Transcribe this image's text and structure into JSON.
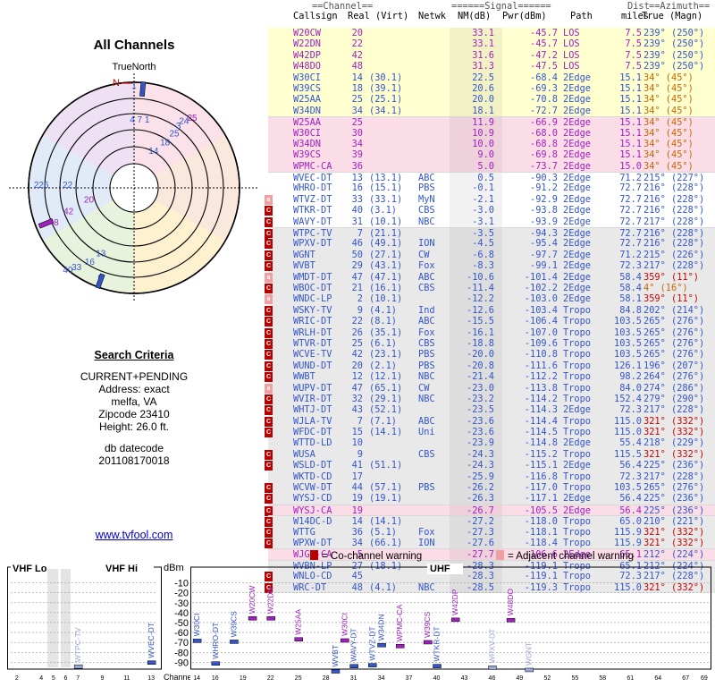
{
  "radar": {
    "title": "All Channels",
    "north_label": "TrueNorth",
    "n_marker": "N",
    "stations": [
      {
        "label": "1",
        "az": 0,
        "r": 0.94,
        "color": "#3355cc"
      },
      {
        "label": "2",
        "az": 5,
        "r": 0.94,
        "color": "#3355cc"
      },
      {
        "label": "4 7 1",
        "az": 5,
        "r": 0.62,
        "color": "#3355cc"
      },
      {
        "label": "25",
        "az": 41,
        "r": 0.84,
        "color": "#a020c0"
      },
      {
        "label": "24",
        "az": 38,
        "r": 0.77,
        "color": "#3355cc"
      },
      {
        "label": "3",
        "az": 37,
        "r": 0.7,
        "color": "#3355cc"
      },
      {
        "label": "25",
        "az": 38,
        "r": 0.62,
        "color": "#3355cc"
      },
      {
        "label": "18",
        "az": 36,
        "r": 0.5,
        "color": "#3355cc"
      },
      {
        "label": "14",
        "az": 30,
        "r": 0.37,
        "color": "#3355cc"
      },
      {
        "label": "22",
        "az": 270,
        "r": 0.63,
        "color": "#3355cc"
      },
      {
        "label": "226",
        "az": 270,
        "r": 0.88,
        "color": "#3355cc"
      },
      {
        "label": "20",
        "az": 252,
        "r": 0.45,
        "color": "#a020c0"
      },
      {
        "label": "42",
        "az": 248,
        "r": 0.67,
        "color": "#a020c0"
      },
      {
        "label": "48",
        "az": 245,
        "r": 0.84,
        "color": "#a020c0"
      },
      {
        "label": "13",
        "az": 206,
        "r": 0.72,
        "color": "#3355cc"
      },
      {
        "label": "16",
        "az": 210,
        "r": 0.84,
        "color": "#3355cc"
      },
      {
        "label": "9",
        "az": 200,
        "r": 0.94,
        "color": "#3355cc"
      },
      {
        "label": "33",
        "az": 215,
        "r": 0.95,
        "color": "#3355cc"
      },
      {
        "label": "40",
        "az": 218,
        "r": 1.02,
        "color": "#3355cc"
      }
    ]
  },
  "criteria": {
    "heading": "Search Criteria",
    "mode": "CURRENT+PENDING",
    "address": "Address: exact",
    "location": "melfa, VA",
    "zipcode": "Zipcode 23410",
    "height": "Height: 26.0 ft.",
    "datecode_label": "db datecode",
    "datecode": "201108170018"
  },
  "site_link": "www.tvfool.com",
  "table_header": {
    "group_channel": "==Channel==",
    "group_signal": "======Signal======",
    "group_dist": "Dist",
    "group_azimuth": "==Azimuth==",
    "col_callsign": "Callsign",
    "col_real_virt": "Real (Virt)",
    "col_netwk": "Netwk",
    "col_nm": "NM(dB)",
    "col_pwr": "Pwr(dBm)",
    "col_path": "Path",
    "col_miles": "miles",
    "col_true_magn": "True (Magn)"
  },
  "rows": [
    {
      "call": "W20CW",
      "real": "20",
      "virt": "",
      "net": "",
      "nm": "33.1",
      "pwr": "-45.7",
      "path": "LOS",
      "dist": "7.5",
      "az": "239° (250°)",
      "band": "yel",
      "fg": "pur",
      "warn": ""
    },
    {
      "call": "W22DN",
      "real": "22",
      "virt": "",
      "net": "",
      "nm": "33.1",
      "pwr": "-45.7",
      "path": "LOS",
      "dist": "7.5",
      "az": "239° (250°)",
      "band": "yel",
      "fg": "pur",
      "warn": ""
    },
    {
      "call": "W42DP",
      "real": "42",
      "virt": "",
      "net": "",
      "nm": "31.6",
      "pwr": "-47.2",
      "path": "LOS",
      "dist": "7.5",
      "az": "239° (250°)",
      "band": "yel",
      "fg": "pur",
      "warn": ""
    },
    {
      "call": "W48DO",
      "real": "48",
      "virt": "",
      "net": "",
      "nm": "31.3",
      "pwr": "-47.5",
      "path": "LOS",
      "dist": "7.5",
      "az": "239° (250°)",
      "band": "yel",
      "fg": "pur",
      "warn": ""
    },
    {
      "call": "W30CI",
      "real": "14",
      "virt": "(30.1)",
      "net": "",
      "nm": "22.5",
      "pwr": "-68.4",
      "path": "2Edge",
      "dist": "15.1",
      "az": "34° (45°)",
      "band": "yel",
      "fg": "blue",
      "warn": ""
    },
    {
      "call": "W39CS",
      "real": "18",
      "virt": "(39.1)",
      "net": "",
      "nm": "20.6",
      "pwr": "-69.3",
      "path": "2Edge",
      "dist": "15.1",
      "az": "34° (45°)",
      "band": "yel",
      "fg": "blue",
      "warn": ""
    },
    {
      "call": "W25AA",
      "real": "25",
      "virt": "(25.1)",
      "net": "",
      "nm": "20.0",
      "pwr": "-70.8",
      "path": "2Edge",
      "dist": "15.1",
      "az": "34° (45°)",
      "band": "yel",
      "fg": "blue",
      "warn": ""
    },
    {
      "call": "W34DN",
      "real": "34",
      "virt": "(34.1)",
      "net": "",
      "nm": "18.1",
      "pwr": "-72.7",
      "path": "2Edge",
      "dist": "15.1",
      "az": "34° (45°)",
      "band": "yel",
      "fg": "blue",
      "warn": ""
    },
    {
      "call": "W25AA",
      "real": "25",
      "virt": "",
      "net": "",
      "nm": "11.9",
      "pwr": "-66.9",
      "path": "2Edge",
      "dist": "15.1",
      "az": "34° (45°)",
      "band": "pur",
      "fg": "pur",
      "warn": ""
    },
    {
      "call": "W30CI",
      "real": "30",
      "virt": "",
      "net": "",
      "nm": "10.9",
      "pwr": "-68.0",
      "path": "2Edge",
      "dist": "15.1",
      "az": "34° (45°)",
      "band": "pur",
      "fg": "pur",
      "warn": ""
    },
    {
      "call": "W34DN",
      "real": "34",
      "virt": "",
      "net": "",
      "nm": "10.0",
      "pwr": "-68.8",
      "path": "2Edge",
      "dist": "15.1",
      "az": "34° (45°)",
      "band": "pur",
      "fg": "pur",
      "warn": ""
    },
    {
      "call": "W39CS",
      "real": "39",
      "virt": "",
      "net": "",
      "nm": "9.0",
      "pwr": "-69.8",
      "path": "2Edge",
      "dist": "15.1",
      "az": "34° (45°)",
      "band": "pur",
      "fg": "pur",
      "warn": ""
    },
    {
      "call": "WPMC-CA",
      "real": "36",
      "virt": "",
      "net": "",
      "nm": "5.0",
      "pwr": "-73.7",
      "path": "2Edge",
      "dist": "15.0",
      "az": "34° (45°)",
      "band": "pur",
      "fg": "pur",
      "warn": ""
    },
    {
      "call": "WVEC-DT",
      "real": "13",
      "virt": "(13.1)",
      "net": "ABC",
      "nm": "0.5",
      "pwr": "-90.3",
      "path": "2Edge",
      "dist": "71.2",
      "az": "215° (227°)",
      "band": "wht",
      "fg": "blue",
      "warn": ""
    },
    {
      "call": "WHRO-DT",
      "real": "16",
      "virt": "(15.1)",
      "net": "PBS",
      "nm": "-0.1",
      "pwr": "-91.2",
      "path": "2Edge",
      "dist": "72.7",
      "az": "216° (228°)",
      "band": "wht",
      "fg": "blue",
      "warn": ""
    },
    {
      "call": "WTVZ-DT",
      "real": "33",
      "virt": "(33.1)",
      "net": "MyN",
      "nm": "-2.1",
      "pwr": "-92.9",
      "path": "2Edge",
      "dist": "72.7",
      "az": "216° (228°)",
      "band": "wht",
      "fg": "blue",
      "warn": "adj"
    },
    {
      "call": "WTKR-DT",
      "real": "40",
      "virt": "(3.1)",
      "net": "CBS",
      "nm": "-3.0",
      "pwr": "-93.8",
      "path": "2Edge",
      "dist": "72.7",
      "az": "216° (228°)",
      "band": "wht",
      "fg": "blue",
      "warn": "co"
    },
    {
      "call": "WAVY-DT",
      "real": "31",
      "virt": "(10.1)",
      "net": "NBC",
      "nm": "-3.1",
      "pwr": "-93.9",
      "path": "2Edge",
      "dist": "72.7",
      "az": "217° (228°)",
      "band": "wht",
      "fg": "blue",
      "warn": "co"
    },
    {
      "call": "WTPC-TV",
      "real": "7",
      "virt": "(21.1)",
      "net": "",
      "nm": "-3.5",
      "pwr": "-94.3",
      "path": "2Edge",
      "dist": "72.7",
      "az": "216° (228°)",
      "band": "gry",
      "fg": "blue",
      "warn": "co"
    },
    {
      "call": "WPXV-DT",
      "real": "46",
      "virt": "(49.1)",
      "net": "ION",
      "nm": "-4.5",
      "pwr": "-95.4",
      "path": "2Edge",
      "dist": "72.7",
      "az": "216° (228°)",
      "band": "gry",
      "fg": "blue",
      "warn": "co"
    },
    {
      "call": "WGNT",
      "real": "50",
      "virt": "(27.1)",
      "net": "CW",
      "nm": "-6.8",
      "pwr": "-97.7",
      "path": "2Edge",
      "dist": "71.2",
      "az": "215° (226°)",
      "band": "gry",
      "fg": "blue",
      "warn": "co"
    },
    {
      "call": "WVBT",
      "real": "29",
      "virt": "(43.1)",
      "net": "Fox",
      "nm": "-8.3",
      "pwr": "-99.1",
      "path": "2Edge",
      "dist": "72.3",
      "az": "217° (228°)",
      "band": "gry",
      "fg": "blue",
      "warn": "co"
    },
    {
      "call": "WMDT-DT",
      "real": "47",
      "virt": "(47.1)",
      "net": "ABC",
      "nm": "-10.6",
      "pwr": "-101.4",
      "path": "2Edge",
      "dist": "58.4",
      "az": "359° (11°)",
      "band": "gry",
      "fg": "blue",
      "warn": "adj"
    },
    {
      "call": "WBOC-DT",
      "real": "21",
      "virt": "(16.1)",
      "net": "CBS",
      "nm": "-11.4",
      "pwr": "-102.2",
      "path": "2Edge",
      "dist": "58.4",
      "az": "4° (16°)",
      "band": "gry",
      "fg": "blue",
      "warn": "co"
    },
    {
      "call": "WNDC-LP",
      "real": "2",
      "virt": "(10.1)",
      "net": "",
      "nm": "-12.2",
      "pwr": "-103.0",
      "path": "2Edge",
      "dist": "58.1",
      "az": "359° (11°)",
      "band": "gry",
      "fg": "blue",
      "warn": "adj"
    },
    {
      "call": "WSKY-TV",
      "real": "9",
      "virt": "(4.1)",
      "net": "Ind",
      "nm": "-12.6",
      "pwr": "-103.4",
      "path": "Tropo",
      "dist": "84.8",
      "az": "202° (214°)",
      "band": "gry",
      "fg": "blue",
      "warn": "co"
    },
    {
      "call": "WRIC-DT",
      "real": "22",
      "virt": "(8.1)",
      "net": "ABC",
      "nm": "-15.5",
      "pwr": "-106.4",
      "path": "Tropo",
      "dist": "103.5",
      "az": "265° (276°)",
      "band": "gry",
      "fg": "blue",
      "warn": "co"
    },
    {
      "call": "WRLH-DT",
      "real": "26",
      "virt": "(35.1)",
      "net": "Fox",
      "nm": "-16.1",
      "pwr": "-107.0",
      "path": "Tropo",
      "dist": "103.5",
      "az": "265° (276°)",
      "band": "gry",
      "fg": "blue",
      "warn": "co"
    },
    {
      "call": "WTVR-DT",
      "real": "25",
      "virt": "(6.1)",
      "net": "CBS",
      "nm": "-18.8",
      "pwr": "-109.6",
      "path": "Tropo",
      "dist": "103.5",
      "az": "265° (276°)",
      "band": "gry",
      "fg": "blue",
      "warn": "co"
    },
    {
      "call": "WCVE-TV",
      "real": "42",
      "virt": "(23.1)",
      "net": "PBS",
      "nm": "-20.0",
      "pwr": "-110.8",
      "path": "Tropo",
      "dist": "103.5",
      "az": "265° (276°)",
      "band": "gry",
      "fg": "blue",
      "warn": "co"
    },
    {
      "call": "WUND-DT",
      "real": "20",
      "virt": "(2.1)",
      "net": "PBS",
      "nm": "-20.8",
      "pwr": "-111.6",
      "path": "Tropo",
      "dist": "126.1",
      "az": "196° (207°)",
      "band": "gry",
      "fg": "blue",
      "warn": "co"
    },
    {
      "call": "WWBT",
      "real": "12",
      "virt": "(12.1)",
      "net": "NBC",
      "nm": "-21.4",
      "pwr": "-112.2",
      "path": "Tropo",
      "dist": "98.2",
      "az": "264° (276°)",
      "band": "gry",
      "fg": "blue",
      "warn": "co"
    },
    {
      "call": "WUPV-DT",
      "real": "47",
      "virt": "(65.1)",
      "net": "CW",
      "nm": "-23.0",
      "pwr": "-113.8",
      "path": "Tropo",
      "dist": "84.0",
      "az": "274° (286°)",
      "band": "gry",
      "fg": "blue",
      "warn": "adj"
    },
    {
      "call": "WVIR-DT",
      "real": "32",
      "virt": "(29.1)",
      "net": "NBC",
      "nm": "-23.2",
      "pwr": "-114.2",
      "path": "Tropo",
      "dist": "152.4",
      "az": "279° (290°)",
      "band": "gry",
      "fg": "blue",
      "warn": "co"
    },
    {
      "call": "WHTJ-DT",
      "real": "43",
      "virt": "(52.1)",
      "net": "",
      "nm": "-23.5",
      "pwr": "-114.3",
      "path": "2Edge",
      "dist": "72.3",
      "az": "217° (228°)",
      "band": "gry",
      "fg": "blue",
      "warn": "co"
    },
    {
      "call": "WJLA-TV",
      "real": "7",
      "virt": "(7.1)",
      "net": "ABC",
      "nm": "-23.6",
      "pwr": "-114.4",
      "path": "Tropo",
      "dist": "115.0",
      "az": "321° (332°)",
      "band": "gry",
      "fg": "blue",
      "warn": "co"
    },
    {
      "call": "WFDC-DT",
      "real": "15",
      "virt": "(14.1)",
      "net": "Uni",
      "nm": "-23.6",
      "pwr": "-114.5",
      "path": "Tropo",
      "dist": "115.0",
      "az": "321° (332°)",
      "band": "gry",
      "fg": "blue",
      "warn": "co"
    },
    {
      "call": "WTTD-LD",
      "real": "10",
      "virt": "",
      "net": "",
      "nm": "-23.9",
      "pwr": "-114.8",
      "path": "2Edge",
      "dist": "55.4",
      "az": "218° (229°)",
      "band": "gry",
      "fg": "blue",
      "warn": ""
    },
    {
      "call": "WUSA",
      "real": "9",
      "virt": "",
      "net": "CBS",
      "nm": "-24.3",
      "pwr": "-115.2",
      "path": "Tropo",
      "dist": "115.5",
      "az": "321° (332°)",
      "band": "gry",
      "fg": "blue",
      "warn": "co"
    },
    {
      "call": "WSLD-DT",
      "real": "41",
      "virt": "(51.1)",
      "net": "",
      "nm": "-24.3",
      "pwr": "-115.1",
      "path": "2Edge",
      "dist": "56.4",
      "az": "225° (236°)",
      "band": "gry",
      "fg": "blue",
      "warn": "co"
    },
    {
      "call": "WKTD-CD",
      "real": "17",
      "virt": "",
      "net": "",
      "nm": "-25.9",
      "pwr": "-116.8",
      "path": "Tropo",
      "dist": "72.3",
      "az": "217° (228°)",
      "band": "gry",
      "fg": "blue",
      "warn": ""
    },
    {
      "call": "WCVW-DT",
      "real": "44",
      "virt": "(57.1)",
      "net": "PBS",
      "nm": "-26.2",
      "pwr": "-117.0",
      "path": "Tropo",
      "dist": "103.5",
      "az": "265° (276°)",
      "band": "gry",
      "fg": "blue",
      "warn": "co"
    },
    {
      "call": "WYSJ-CD",
      "real": "19",
      "virt": "(19.1)",
      "net": "",
      "nm": "-26.3",
      "pwr": "-117.1",
      "path": "2Edge",
      "dist": "56.4",
      "az": "225° (236°)",
      "band": "gry",
      "fg": "blue",
      "warn": "co"
    },
    {
      "call": "WYSJ-CA",
      "real": "19",
      "virt": "",
      "net": "",
      "nm": "-26.7",
      "pwr": "-105.5",
      "path": "2Edge",
      "dist": "56.4",
      "az": "225° (236°)",
      "band": "pur",
      "fg": "pur",
      "warn": "co"
    },
    {
      "call": "W14DC-D",
      "real": "14",
      "virt": "(14.1)",
      "net": "",
      "nm": "-27.2",
      "pwr": "-118.0",
      "path": "Tropo",
      "dist": "65.0",
      "az": "210° (221°)",
      "band": "gry",
      "fg": "blue",
      "warn": "co"
    },
    {
      "call": "WTTG",
      "real": "36",
      "virt": "(5.1)",
      "net": "Fox",
      "nm": "-27.3",
      "pwr": "-118.1",
      "path": "Tropo",
      "dist": "115.9",
      "az": "321° (332°)",
      "band": "gry",
      "fg": "blue",
      "warn": "co"
    },
    {
      "call": "WPXW-DT",
      "real": "34",
      "virt": "(66.1)",
      "net": "ION",
      "nm": "-27.6",
      "pwr": "-118.4",
      "path": "Tropo",
      "dist": "115.9",
      "az": "321° (332°)",
      "band": "gry",
      "fg": "blue",
      "warn": "co"
    },
    {
      "call": "WJGN-CA",
      "real": "5",
      "virt": "",
      "net": "",
      "nm": "-27.7",
      "pwr": "-106.6",
      "path": "2Edge",
      "dist": "65.1",
      "az": "212° (224°)",
      "band": "pur",
      "fg": "pur",
      "warn": ""
    },
    {
      "call": "WVBN-LP",
      "real": "27",
      "virt": "(18.1)",
      "net": "",
      "nm": "-28.3",
      "pwr": "-119.1",
      "path": "Tropo",
      "dist": "65.1",
      "az": "212° (224°)",
      "band": "gry",
      "fg": "blue",
      "warn": ""
    },
    {
      "call": "WNLO-CD",
      "real": "45",
      "virt": "",
      "net": "",
      "nm": "-28.3",
      "pwr": "-119.1",
      "path": "Tropo",
      "dist": "72.3",
      "az": "217° (228°)",
      "band": "gry",
      "fg": "blue",
      "warn": "co"
    },
    {
      "call": "WRC-DT",
      "real": "48",
      "virt": "(4.1)",
      "net": "NBC",
      "nm": "-28.5",
      "pwr": "-119.3",
      "path": "Tropo",
      "dist": "115.0",
      "az": "321° (332°)",
      "band": "gry",
      "fg": "blue",
      "warn": "co"
    }
  ],
  "legend": {
    "co_mark": "C",
    "co_text": "= Co-channel warning",
    "adj_mark": "a",
    "adj_text": "= Adjacent channel warning"
  },
  "spectrum": {
    "vhf_lo_label": "VHF Lo",
    "vhf_hi_label": "VHF Hi",
    "uhf_label": "UHF",
    "dbm_label": "dBm",
    "channel_label": "Channel",
    "dbm_ticks": [
      "-10",
      "-20",
      "-30",
      "-40",
      "-50",
      "-60",
      "-70",
      "-80",
      "-90"
    ],
    "vhf_ticks": [
      "2",
      "4",
      "5",
      "6",
      "7",
      "9",
      "11",
      "13"
    ],
    "uhf_ticks": [
      "14",
      "16",
      "19",
      "22",
      "25",
      "28",
      "31",
      "34",
      "37",
      "40",
      "43",
      "46",
      "49",
      "52",
      "55",
      "58",
      "61",
      "64",
      "67",
      "69"
    ],
    "vhf_marks": [
      {
        "ch": 7,
        "dbm": -94.3,
        "label": "WTPC-TV",
        "color": "#9aa8d8"
      },
      {
        "ch": 13,
        "dbm": -90.3,
        "label": "WVEC-DT",
        "color": "#3355cc"
      }
    ],
    "uhf_marks": [
      {
        "ch": 14,
        "dbm": -68.4,
        "label": "W30CI",
        "color": "#3355cc"
      },
      {
        "ch": 16,
        "dbm": -91.2,
        "label": "WHRO-DT",
        "color": "#3355cc"
      },
      {
        "ch": 18,
        "dbm": -69.3,
        "label": "W39CS",
        "color": "#3355cc"
      },
      {
        "ch": 20,
        "dbm": -45.7,
        "label": "W20CW",
        "color": "#a020c0"
      },
      {
        "ch": 22,
        "dbm": -45.7,
        "label": "W22DN",
        "color": "#a020c0"
      },
      {
        "ch": 25,
        "dbm": -66.9,
        "label": "W25AA",
        "color": "#a020c0"
      },
      {
        "ch": 29,
        "dbm": -99.1,
        "label": "WVBT",
        "color": "#3355cc"
      },
      {
        "ch": 30,
        "dbm": -68.0,
        "label": "W30CI",
        "color": "#a020c0"
      },
      {
        "ch": 31,
        "dbm": -93.9,
        "label": "WAVY-DT",
        "color": "#3355cc"
      },
      {
        "ch": 33,
        "dbm": -92.9,
        "label": "WTVZ-DT",
        "color": "#3355cc"
      },
      {
        "ch": 34,
        "dbm": -72.7,
        "label": "W34DN",
        "color": "#3355cc"
      },
      {
        "ch": 36,
        "dbm": -73.7,
        "label": "WPMC-CA",
        "color": "#a020c0"
      },
      {
        "ch": 39,
        "dbm": -69.8,
        "label": "W39CS",
        "color": "#a020c0"
      },
      {
        "ch": 40,
        "dbm": -93.8,
        "label": "WTKR-DT",
        "color": "#3355cc"
      },
      {
        "ch": 42,
        "dbm": -47.2,
        "label": "W42DP",
        "color": "#a020c0"
      },
      {
        "ch": 46,
        "dbm": -95.4,
        "label": "WPXV-DT",
        "color": "#9aa8d8"
      },
      {
        "ch": 48,
        "dbm": -47.5,
        "label": "W48DO",
        "color": "#a020c0"
      },
      {
        "ch": 50,
        "dbm": -97.7,
        "label": "WGNT",
        "color": "#9aa8d8"
      }
    ]
  }
}
